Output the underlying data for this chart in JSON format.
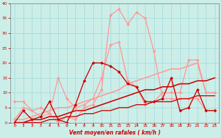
{
  "background_color": "#cceee8",
  "grid_color": "#aadddd",
  "xlabel": "Vent moyen/en rafales ( km/h )",
  "xlabel_color": "#cc0000",
  "tick_color": "#cc0000",
  "xlim": [
    -0.5,
    23.5
  ],
  "ylim": [
    0,
    40
  ],
  "xticks": [
    0,
    1,
    2,
    3,
    4,
    5,
    6,
    7,
    8,
    9,
    10,
    11,
    12,
    13,
    14,
    15,
    16,
    17,
    18,
    19,
    20,
    21,
    22,
    23
  ],
  "yticks": [
    0,
    5,
    10,
    15,
    20,
    25,
    30,
    35,
    40
  ],
  "lines": [
    {
      "x": [
        0,
        1,
        2,
        3,
        4,
        5,
        6,
        7,
        8,
        9,
        10,
        11,
        12,
        13,
        14,
        15,
        16,
        17,
        18,
        19,
        20,
        21,
        22,
        23
      ],
      "y": [
        1,
        5,
        4,
        2,
        3,
        0,
        2,
        1,
        5,
        6,
        11,
        36,
        38,
        33,
        37,
        35,
        24,
        8,
        8,
        8,
        8,
        8,
        4,
        4
      ],
      "color": "#ff9999",
      "lw": 1.0,
      "marker": "D",
      "ms": 2.0
    },
    {
      "x": [
        0,
        1,
        2,
        3,
        4,
        5,
        6,
        7,
        8,
        9,
        10,
        11,
        12,
        13,
        14,
        15,
        16,
        17,
        18,
        19,
        20,
        21,
        22,
        23
      ],
      "y": [
        7,
        7,
        4,
        5,
        3,
        15,
        8,
        5,
        6,
        8,
        15,
        26,
        27,
        14,
        12,
        6,
        7,
        10,
        10,
        10,
        21,
        21,
        10,
        10
      ],
      "color": "#ff9999",
      "lw": 1.0,
      "marker": "D",
      "ms": 2.0
    },
    {
      "x": [
        0,
        1,
        2,
        3,
        4,
        5,
        6,
        7,
        8,
        9,
        10,
        11,
        12,
        13,
        14,
        15,
        16,
        17,
        18,
        19,
        20,
        21,
        22,
        23
      ],
      "y": [
        1,
        1,
        2,
        3,
        4,
        5,
        5,
        6,
        7,
        8,
        9,
        10,
        11,
        13,
        14,
        15,
        16,
        17,
        18,
        18,
        19,
        20,
        10,
        10
      ],
      "color": "#ff9999",
      "lw": 1.2,
      "marker": null,
      "ms": 0
    },
    {
      "x": [
        0,
        1,
        2,
        3,
        4,
        5,
        6,
        7,
        8,
        9,
        10,
        11,
        12,
        13,
        14,
        15,
        16,
        17,
        18,
        19,
        20,
        21,
        22,
        23
      ],
      "y": [
        0,
        4,
        1,
        2,
        7,
        1,
        0,
        6,
        14,
        20,
        20,
        19,
        17,
        13,
        12,
        7,
        7,
        8,
        15,
        4,
        5,
        11,
        4,
        4
      ],
      "color": "#cc0000",
      "lw": 1.0,
      "marker": "D",
      "ms": 2.0
    },
    {
      "x": [
        0,
        1,
        2,
        3,
        4,
        5,
        6,
        7,
        8,
        9,
        10,
        11,
        12,
        13,
        14,
        15,
        16,
        17,
        18,
        19,
        20,
        21,
        22,
        23
      ],
      "y": [
        0,
        0,
        1,
        1,
        2,
        2,
        3,
        4,
        4,
        5,
        6,
        7,
        8,
        9,
        10,
        11,
        11,
        12,
        12,
        13,
        13,
        14,
        14,
        15
      ],
      "color": "#cc0000",
      "lw": 1.2,
      "marker": null,
      "ms": 0
    },
    {
      "x": [
        0,
        1,
        2,
        3,
        4,
        5,
        6,
        7,
        8,
        9,
        10,
        11,
        12,
        13,
        14,
        15,
        16,
        17,
        18,
        19,
        20,
        21,
        22,
        23
      ],
      "y": [
        0,
        0,
        0,
        0,
        1,
        1,
        2,
        2,
        3,
        3,
        4,
        4,
        5,
        5,
        6,
        6,
        7,
        7,
        7,
        8,
        8,
        9,
        9,
        9
      ],
      "color": "#cc0000",
      "lw": 1.0,
      "marker": null,
      "ms": 0
    }
  ],
  "arrow_markers": [
    0,
    1,
    2,
    3,
    4,
    5,
    6,
    7,
    8,
    9,
    10,
    11,
    12,
    13,
    14,
    15,
    16,
    17,
    18,
    19,
    20,
    21,
    22,
    23
  ]
}
